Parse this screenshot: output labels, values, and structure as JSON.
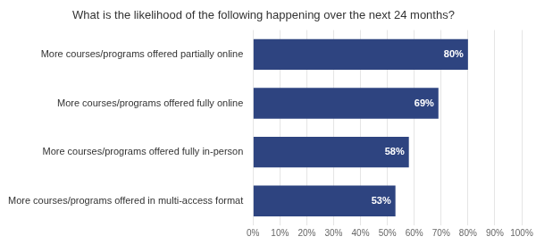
{
  "chart_data": {
    "type": "bar",
    "orientation": "horizontal",
    "title": "What is the likelihood of the following happening over the next 24 months?",
    "categories": [
      "More courses/programs offered in multi-access format",
      "More courses/programs offered fully in-person",
      "More courses/programs offered fully online",
      "More courses/programs offered partially online"
    ],
    "values": [
      53,
      58,
      69,
      80
    ],
    "value_labels": [
      "53%",
      "58%",
      "69%",
      "80%"
    ],
    "data_labels": true,
    "color": "#2E4480",
    "xlim": [
      0,
      100
    ],
    "xticks": [
      {
        "value": 0,
        "label": "0%"
      },
      {
        "value": 10,
        "label": "10%"
      },
      {
        "value": 20,
        "label": "20%"
      },
      {
        "value": 30,
        "label": "30%"
      },
      {
        "value": 40,
        "label": "40%"
      },
      {
        "value": 50,
        "label": "50%"
      },
      {
        "value": 60,
        "label": "60%"
      },
      {
        "value": 70,
        "label": "70%"
      },
      {
        "value": 80,
        "label": "80%"
      },
      {
        "value": 90,
        "label": "90%"
      },
      {
        "value": 100,
        "label": "100%"
      }
    ],
    "grid": true
  }
}
